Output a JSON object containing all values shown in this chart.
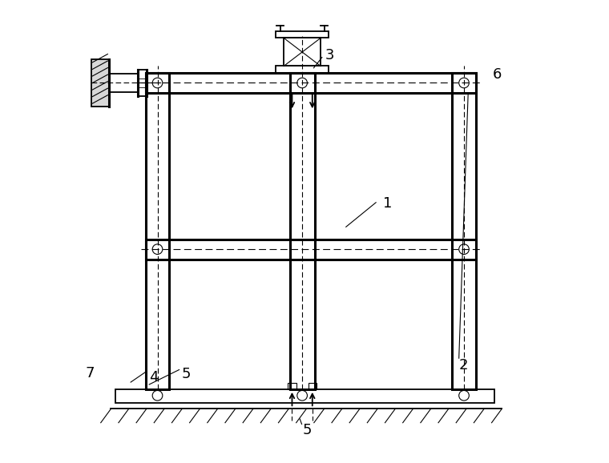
{
  "bg_color": "#ffffff",
  "line_color": "#000000",
  "fig_width": 7.6,
  "fig_height": 5.78,
  "dpi": 100
}
